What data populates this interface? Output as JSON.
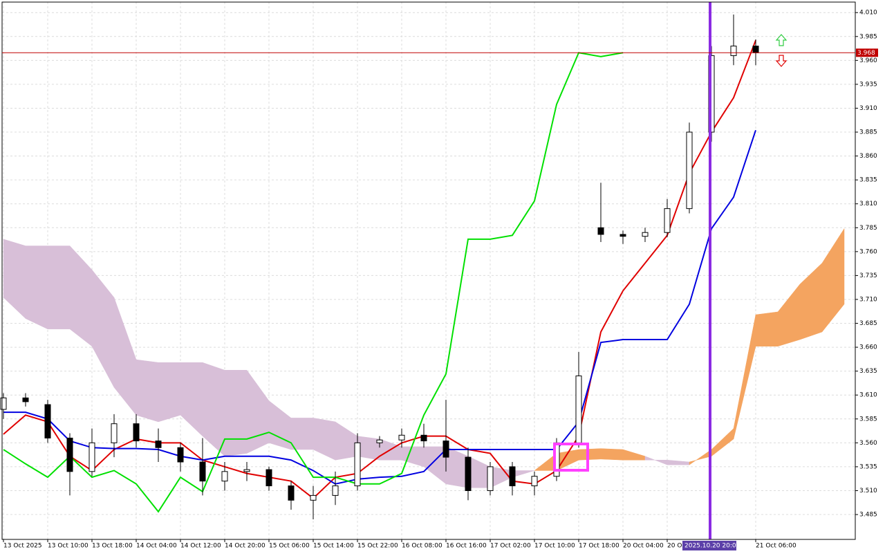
{
  "chart_data": {
    "type": "candlestick",
    "categories": [
      "13 Oct 2025",
      null,
      "13 Oct 10:00",
      null,
      "13 Oct 18:00",
      null,
      "14 Oct 04:00",
      null,
      "14 Oct 12:00",
      null,
      "14 Oct 20:00",
      null,
      "15 Oct 06:00",
      null,
      "15 Oct 14:00",
      null,
      "15 Oct 22:00",
      null,
      "16 Oct 08:00",
      null,
      "16 Oct 16:00",
      null,
      "17 Oct 02:00",
      null,
      "17 Oct 10:00",
      null,
      "17 Oct 18:00",
      null,
      "20 Oct 04:00",
      null,
      "20 Oct 12:00",
      null,
      null,
      null,
      "21 Oct 06:00",
      null,
      null,
      null,
      null
    ],
    "open": [
      3.595,
      3.607,
      3.6,
      3.565,
      3.53,
      3.56,
      3.58,
      3.562,
      3.555,
      3.54,
      3.52,
      3.53,
      3.532,
      3.515,
      3.5,
      3.505,
      3.515,
      3.56,
      3.563,
      3.568,
      3.562,
      3.545,
      3.51,
      3.535,
      3.515,
      3.525,
      3.56,
      3.785,
      3.778,
      3.776,
      3.78,
      3.805,
      3.885,
      3.965,
      3.975,
      null,
      null,
      null,
      null
    ],
    "high": [
      3.612,
      3.612,
      3.605,
      3.57,
      3.575,
      3.59,
      3.59,
      3.575,
      3.56,
      3.565,
      3.54,
      3.54,
      3.535,
      3.52,
      3.515,
      3.53,
      3.57,
      3.567,
      3.575,
      3.58,
      3.605,
      3.555,
      3.54,
      3.54,
      3.53,
      3.565,
      3.655,
      3.832,
      3.782,
      3.785,
      3.815,
      3.895,
      3.975,
      4.008,
      3.982,
      null,
      null,
      null,
      null
    ],
    "low": [
      3.585,
      3.598,
      3.56,
      3.505,
      3.525,
      3.545,
      3.555,
      3.54,
      3.53,
      3.505,
      3.51,
      3.52,
      3.51,
      3.49,
      3.48,
      3.495,
      3.51,
      3.555,
      3.555,
      3.555,
      3.53,
      3.5,
      3.505,
      3.505,
      3.505,
      3.52,
      3.555,
      3.77,
      3.768,
      3.77,
      3.775,
      3.8,
      3.875,
      3.955,
      3.955,
      null,
      null,
      null,
      null
    ],
    "close": [
      3.607,
      3.603,
      3.565,
      3.53,
      3.56,
      3.58,
      3.562,
      3.555,
      3.54,
      3.52,
      3.53,
      3.532,
      3.515,
      3.5,
      3.505,
      3.515,
      3.56,
      3.563,
      3.568,
      3.562,
      3.545,
      3.51,
      3.535,
      3.515,
      3.525,
      3.56,
      3.63,
      3.778,
      3.776,
      3.78,
      3.805,
      3.885,
      3.965,
      3.975,
      3.968,
      null,
      null,
      null,
      null
    ],
    "series": [
      {
        "color": "#e00000",
        "values": [
          3.569,
          3.589,
          3.582,
          3.546,
          3.531,
          3.553,
          3.564,
          3.56,
          3.56,
          3.542,
          3.535,
          3.528,
          3.524,
          3.52,
          3.502,
          3.524,
          3.528,
          3.546,
          3.56,
          3.567,
          3.567,
          3.553,
          3.549,
          3.52,
          3.517,
          3.531,
          3.567,
          3.676,
          3.719,
          3.748,
          3.777,
          3.842,
          3.885,
          3.921,
          3.981,
          null,
          null,
          null,
          null
        ]
      },
      {
        "color": "#0000e0",
        "values": [
          3.592,
          3.592,
          3.585,
          3.562,
          3.555,
          3.554,
          3.554,
          3.553,
          3.546,
          3.542,
          3.546,
          3.546,
          3.546,
          3.542,
          3.531,
          3.517,
          3.522,
          3.524,
          3.525,
          3.53,
          3.553,
          3.553,
          3.553,
          3.553,
          3.553,
          3.553,
          3.582,
          3.665,
          3.668,
          3.668,
          3.668,
          3.705,
          3.784,
          3.817,
          3.887,
          null,
          null,
          null,
          null
        ]
      },
      {
        "color": "#00e000",
        "values": [
          3.553,
          3.538,
          3.524,
          3.546,
          3.524,
          3.531,
          3.517,
          3.488,
          3.524,
          3.509,
          3.564,
          3.564,
          3.571,
          3.56,
          3.524,
          3.524,
          3.517,
          3.517,
          3.528,
          3.589,
          3.632,
          3.773,
          3.773,
          3.777,
          3.813,
          3.914,
          3.968,
          3.964,
          3.968,
          null,
          null,
          null,
          null,
          null,
          null,
          null,
          null,
          null,
          null
        ]
      }
    ],
    "cloud": {
      "span_a": [
        3.712,
        3.69,
        3.679,
        3.679,
        3.661,
        3.618,
        3.589,
        3.582,
        3.589,
        3.567,
        3.546,
        3.549,
        3.56,
        3.553,
        3.553,
        3.542,
        3.546,
        3.542,
        3.542,
        3.535,
        3.517,
        3.513,
        3.513,
        3.524,
        3.531,
        3.549,
        3.553,
        3.554,
        3.553,
        3.546,
        3.537,
        3.537,
        3.553,
        3.575,
        3.694,
        3.697,
        3.726,
        3.748,
        3.784
      ],
      "span_b": [
        3.773,
        3.766,
        3.766,
        3.766,
        3.741,
        3.712,
        3.647,
        3.644,
        3.644,
        3.644,
        3.636,
        3.636,
        3.604,
        3.586,
        3.586,
        3.582,
        3.567,
        3.564,
        3.556,
        3.556,
        3.556,
        3.546,
        3.535,
        3.531,
        3.531,
        3.531,
        3.542,
        3.543,
        3.542,
        3.542,
        3.542,
        3.54,
        3.546,
        3.564,
        3.661,
        3.661,
        3.668,
        3.676,
        3.705
      ],
      "up_color": "#f4a460",
      "down_color": "#d8bfd8"
    },
    "price_line": 3.968,
    "price_color": "#c00000",
    "crosshair_label": "2025.10.20 20:00",
    "ylim": [
      3.459,
      4.021
    ],
    "yticks": [
      3.485,
      {
        "value": 3.51,
        "label": "3.510"
      },
      3.535,
      {
        "value": 3.56,
        "label": "3.560"
      },
      3.585,
      {
        "value": 3.61,
        "label": "3.610"
      },
      3.635,
      {
        "value": 3.66,
        "label": "3.660"
      },
      3.685,
      {
        "value": 3.71,
        "label": "3.710"
      },
      3.735,
      {
        "value": 3.76,
        "label": "3.760"
      },
      3.785,
      {
        "value": 3.81,
        "label": "3.810"
      },
      3.835,
      {
        "value": 3.86,
        "label": "3.860"
      },
      3.885,
      {
        "value": 3.91,
        "label": "3.910"
      },
      3.935,
      {
        "value": 3.96,
        "label": "3.960"
      },
      3.985,
      {
        "value": 4.01,
        "label": "4.010"
      }
    ],
    "grid": true
  }
}
